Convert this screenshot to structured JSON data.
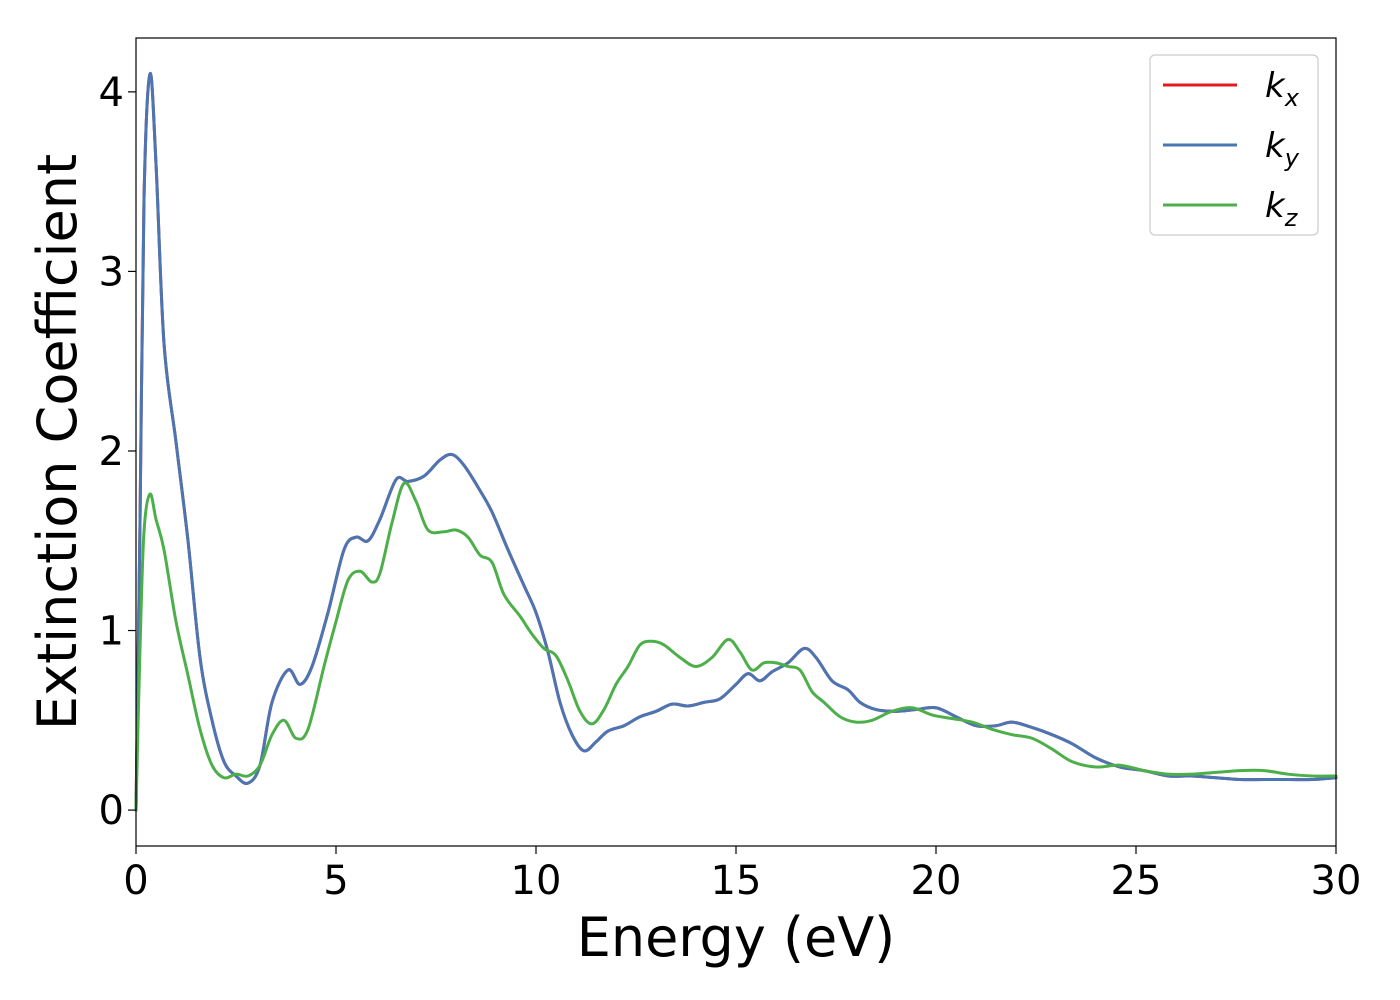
{
  "chart_data": {
    "type": "line",
    "title": "",
    "xlabel": "Energy (eV)",
    "ylabel": "Extinction Coefficient",
    "xlim": [
      0,
      30
    ],
    "ylim": [
      -0.2,
      4.3
    ],
    "xticks": [
      "0",
      "5",
      "10",
      "15",
      "20",
      "25",
      "30"
    ],
    "yticks": [
      "0",
      "1",
      "2",
      "3",
      "4"
    ],
    "grid": false,
    "legend_position": "top-right",
    "series": [
      {
        "name": "k_x",
        "legend_base": "k",
        "legend_sub": "x",
        "color": "#e41a1c",
        "x": [
          0,
          0.1,
          0.2,
          0.35,
          0.5,
          0.7,
          1.0,
          1.3,
          1.6,
          1.9,
          2.2,
          2.5,
          2.8,
          3.1,
          3.4,
          3.8,
          4.1,
          4.4,
          4.8,
          5.2,
          5.5,
          5.8,
          6.1,
          6.5,
          6.8,
          7.2,
          7.6,
          7.9,
          8.2,
          8.6,
          8.9,
          9.3,
          9.7,
          10.0,
          10.3,
          10.6,
          10.9,
          11.2,
          11.5,
          11.8,
          12.2,
          12.6,
          13.0,
          13.4,
          13.8,
          14.2,
          14.6,
          15.0,
          15.3,
          15.6,
          15.9,
          16.3,
          16.7,
          17.0,
          17.4,
          17.8,
          18.1,
          18.5,
          19.0,
          19.5,
          20.0,
          20.5,
          21.0,
          21.5,
          21.9,
          22.4,
          22.9,
          23.4,
          24.0,
          24.6,
          25.2,
          25.8,
          26.4,
          27.0,
          27.6,
          28.2,
          28.8,
          29.4,
          30.0
        ],
        "y": [
          0.0,
          1.6,
          3.4,
          4.1,
          3.6,
          2.6,
          2.05,
          1.5,
          0.85,
          0.5,
          0.27,
          0.19,
          0.15,
          0.25,
          0.6,
          0.78,
          0.7,
          0.8,
          1.1,
          1.45,
          1.52,
          1.5,
          1.62,
          1.84,
          1.83,
          1.86,
          1.95,
          1.98,
          1.92,
          1.78,
          1.66,
          1.45,
          1.25,
          1.1,
          0.88,
          0.6,
          0.42,
          0.33,
          0.38,
          0.44,
          0.47,
          0.52,
          0.55,
          0.59,
          0.58,
          0.6,
          0.62,
          0.7,
          0.76,
          0.72,
          0.77,
          0.82,
          0.9,
          0.85,
          0.72,
          0.67,
          0.6,
          0.56,
          0.55,
          0.56,
          0.57,
          0.52,
          0.47,
          0.47,
          0.49,
          0.46,
          0.42,
          0.37,
          0.29,
          0.24,
          0.22,
          0.19,
          0.19,
          0.18,
          0.17,
          0.17,
          0.17,
          0.17,
          0.18
        ]
      },
      {
        "name": "k_y",
        "legend_base": "k",
        "legend_sub": "y",
        "color": "#4a77b4",
        "x": [
          0,
          0.1,
          0.2,
          0.35,
          0.5,
          0.7,
          1.0,
          1.3,
          1.6,
          1.9,
          2.2,
          2.5,
          2.8,
          3.1,
          3.4,
          3.8,
          4.1,
          4.4,
          4.8,
          5.2,
          5.5,
          5.8,
          6.1,
          6.5,
          6.8,
          7.2,
          7.6,
          7.9,
          8.2,
          8.6,
          8.9,
          9.3,
          9.7,
          10.0,
          10.3,
          10.6,
          10.9,
          11.2,
          11.5,
          11.8,
          12.2,
          12.6,
          13.0,
          13.4,
          13.8,
          14.2,
          14.6,
          15.0,
          15.3,
          15.6,
          15.9,
          16.3,
          16.7,
          17.0,
          17.4,
          17.8,
          18.1,
          18.5,
          19.0,
          19.5,
          20.0,
          20.5,
          21.0,
          21.5,
          21.9,
          22.4,
          22.9,
          23.4,
          24.0,
          24.6,
          25.2,
          25.8,
          26.4,
          27.0,
          27.6,
          28.2,
          28.8,
          29.4,
          30.0
        ],
        "y": [
          0.0,
          1.6,
          3.4,
          4.1,
          3.6,
          2.6,
          2.05,
          1.5,
          0.85,
          0.5,
          0.27,
          0.19,
          0.15,
          0.25,
          0.6,
          0.78,
          0.7,
          0.8,
          1.1,
          1.45,
          1.52,
          1.5,
          1.62,
          1.84,
          1.83,
          1.86,
          1.95,
          1.98,
          1.92,
          1.78,
          1.66,
          1.45,
          1.25,
          1.1,
          0.88,
          0.6,
          0.42,
          0.33,
          0.38,
          0.44,
          0.47,
          0.52,
          0.55,
          0.59,
          0.58,
          0.6,
          0.62,
          0.7,
          0.76,
          0.72,
          0.77,
          0.82,
          0.9,
          0.85,
          0.72,
          0.67,
          0.6,
          0.56,
          0.55,
          0.56,
          0.57,
          0.52,
          0.47,
          0.47,
          0.49,
          0.46,
          0.42,
          0.37,
          0.29,
          0.24,
          0.22,
          0.19,
          0.19,
          0.18,
          0.17,
          0.17,
          0.17,
          0.17,
          0.18
        ]
      },
      {
        "name": "k_z",
        "legend_base": "k",
        "legend_sub": "z",
        "color": "#4daf4a",
        "x": [
          0,
          0.1,
          0.2,
          0.35,
          0.5,
          0.7,
          1.0,
          1.3,
          1.6,
          1.9,
          2.2,
          2.5,
          2.8,
          3.1,
          3.4,
          3.7,
          4.0,
          4.3,
          4.7,
          5.0,
          5.3,
          5.6,
          5.9,
          6.1,
          6.4,
          6.7,
          7.0,
          7.3,
          7.7,
          8.0,
          8.3,
          8.6,
          8.9,
          9.2,
          9.6,
          9.9,
          10.2,
          10.5,
          10.8,
          11.1,
          11.4,
          11.7,
          12.0,
          12.3,
          12.6,
          12.9,
          13.2,
          13.6,
          14.0,
          14.4,
          14.8,
          15.1,
          15.4,
          15.7,
          16.0,
          16.3,
          16.6,
          16.9,
          17.2,
          17.6,
          18.0,
          18.4,
          18.9,
          19.4,
          19.9,
          20.4,
          20.9,
          21.4,
          21.9,
          22.4,
          22.9,
          23.4,
          24.0,
          24.6,
          25.2,
          25.8,
          26.4,
          27.0,
          27.6,
          28.2,
          28.8,
          29.4,
          30.0
        ],
        "y": [
          0.0,
          0.9,
          1.55,
          1.76,
          1.62,
          1.45,
          1.05,
          0.75,
          0.45,
          0.25,
          0.18,
          0.2,
          0.19,
          0.25,
          0.42,
          0.5,
          0.4,
          0.45,
          0.8,
          1.05,
          1.28,
          1.33,
          1.27,
          1.32,
          1.6,
          1.82,
          1.72,
          1.56,
          1.55,
          1.56,
          1.52,
          1.42,
          1.38,
          1.2,
          1.08,
          0.98,
          0.9,
          0.86,
          0.72,
          0.55,
          0.48,
          0.56,
          0.7,
          0.8,
          0.92,
          0.94,
          0.92,
          0.85,
          0.8,
          0.85,
          0.95,
          0.88,
          0.78,
          0.82,
          0.82,
          0.8,
          0.78,
          0.66,
          0.6,
          0.52,
          0.49,
          0.5,
          0.55,
          0.57,
          0.53,
          0.51,
          0.49,
          0.45,
          0.42,
          0.4,
          0.34,
          0.27,
          0.24,
          0.25,
          0.22,
          0.2,
          0.2,
          0.21,
          0.22,
          0.22,
          0.2,
          0.19,
          0.19
        ]
      }
    ]
  }
}
